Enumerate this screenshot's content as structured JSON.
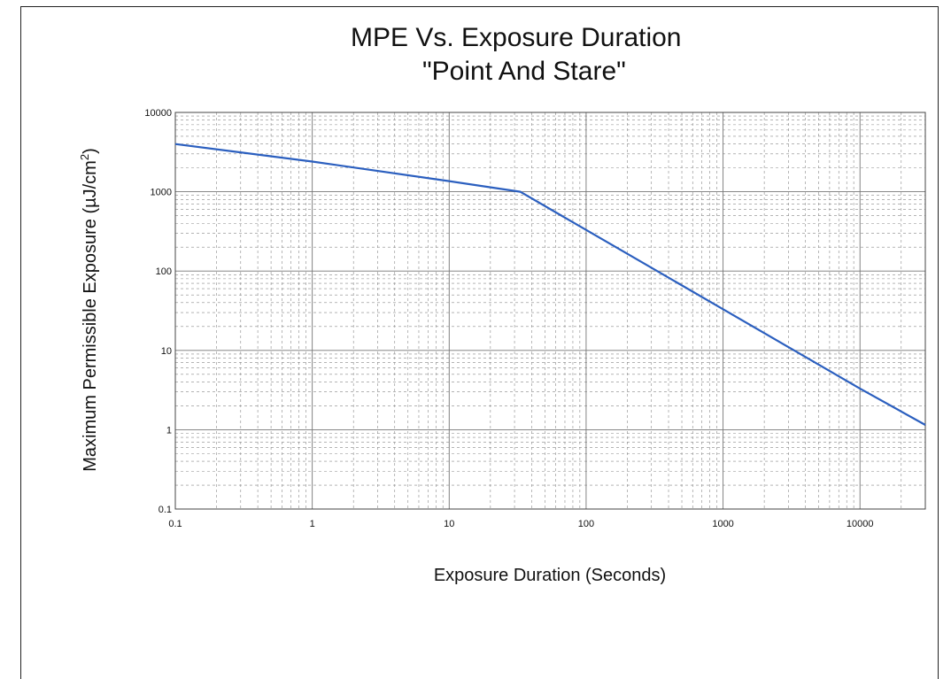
{
  "chart_data": {
    "type": "line",
    "title": "MPE Vs. Exposure Duration",
    "subtitle": "\"Point And Stare\"",
    "xlabel": "Exposure Duration (Seconds)",
    "ylabel": "Maximum Permissible Exposure (µJ/cm²)",
    "x_scale": "log",
    "y_scale": "log",
    "xlim": [
      0.1,
      30000
    ],
    "ylim": [
      0.1,
      10000
    ],
    "x_ticks": [
      0.1,
      1,
      10,
      100,
      1000,
      10000
    ],
    "x_tick_labels": [
      "0.1",
      "1",
      "10",
      "100",
      "1000",
      "10000"
    ],
    "y_ticks": [
      0.1,
      1,
      10,
      100,
      1000,
      10000
    ],
    "y_tick_labels": [
      "0.1",
      "1",
      "10",
      "100",
      "1000",
      "10000"
    ],
    "grid": true,
    "line_color": "#2b5fbf",
    "series": [
      {
        "x": [
          0.1,
          1,
          10,
          33,
          100,
          1000,
          10000,
          30000
        ],
        "y": [
          4000,
          2400,
          1360,
          1000,
          330,
          33,
          3.3,
          1.15
        ]
      }
    ]
  }
}
